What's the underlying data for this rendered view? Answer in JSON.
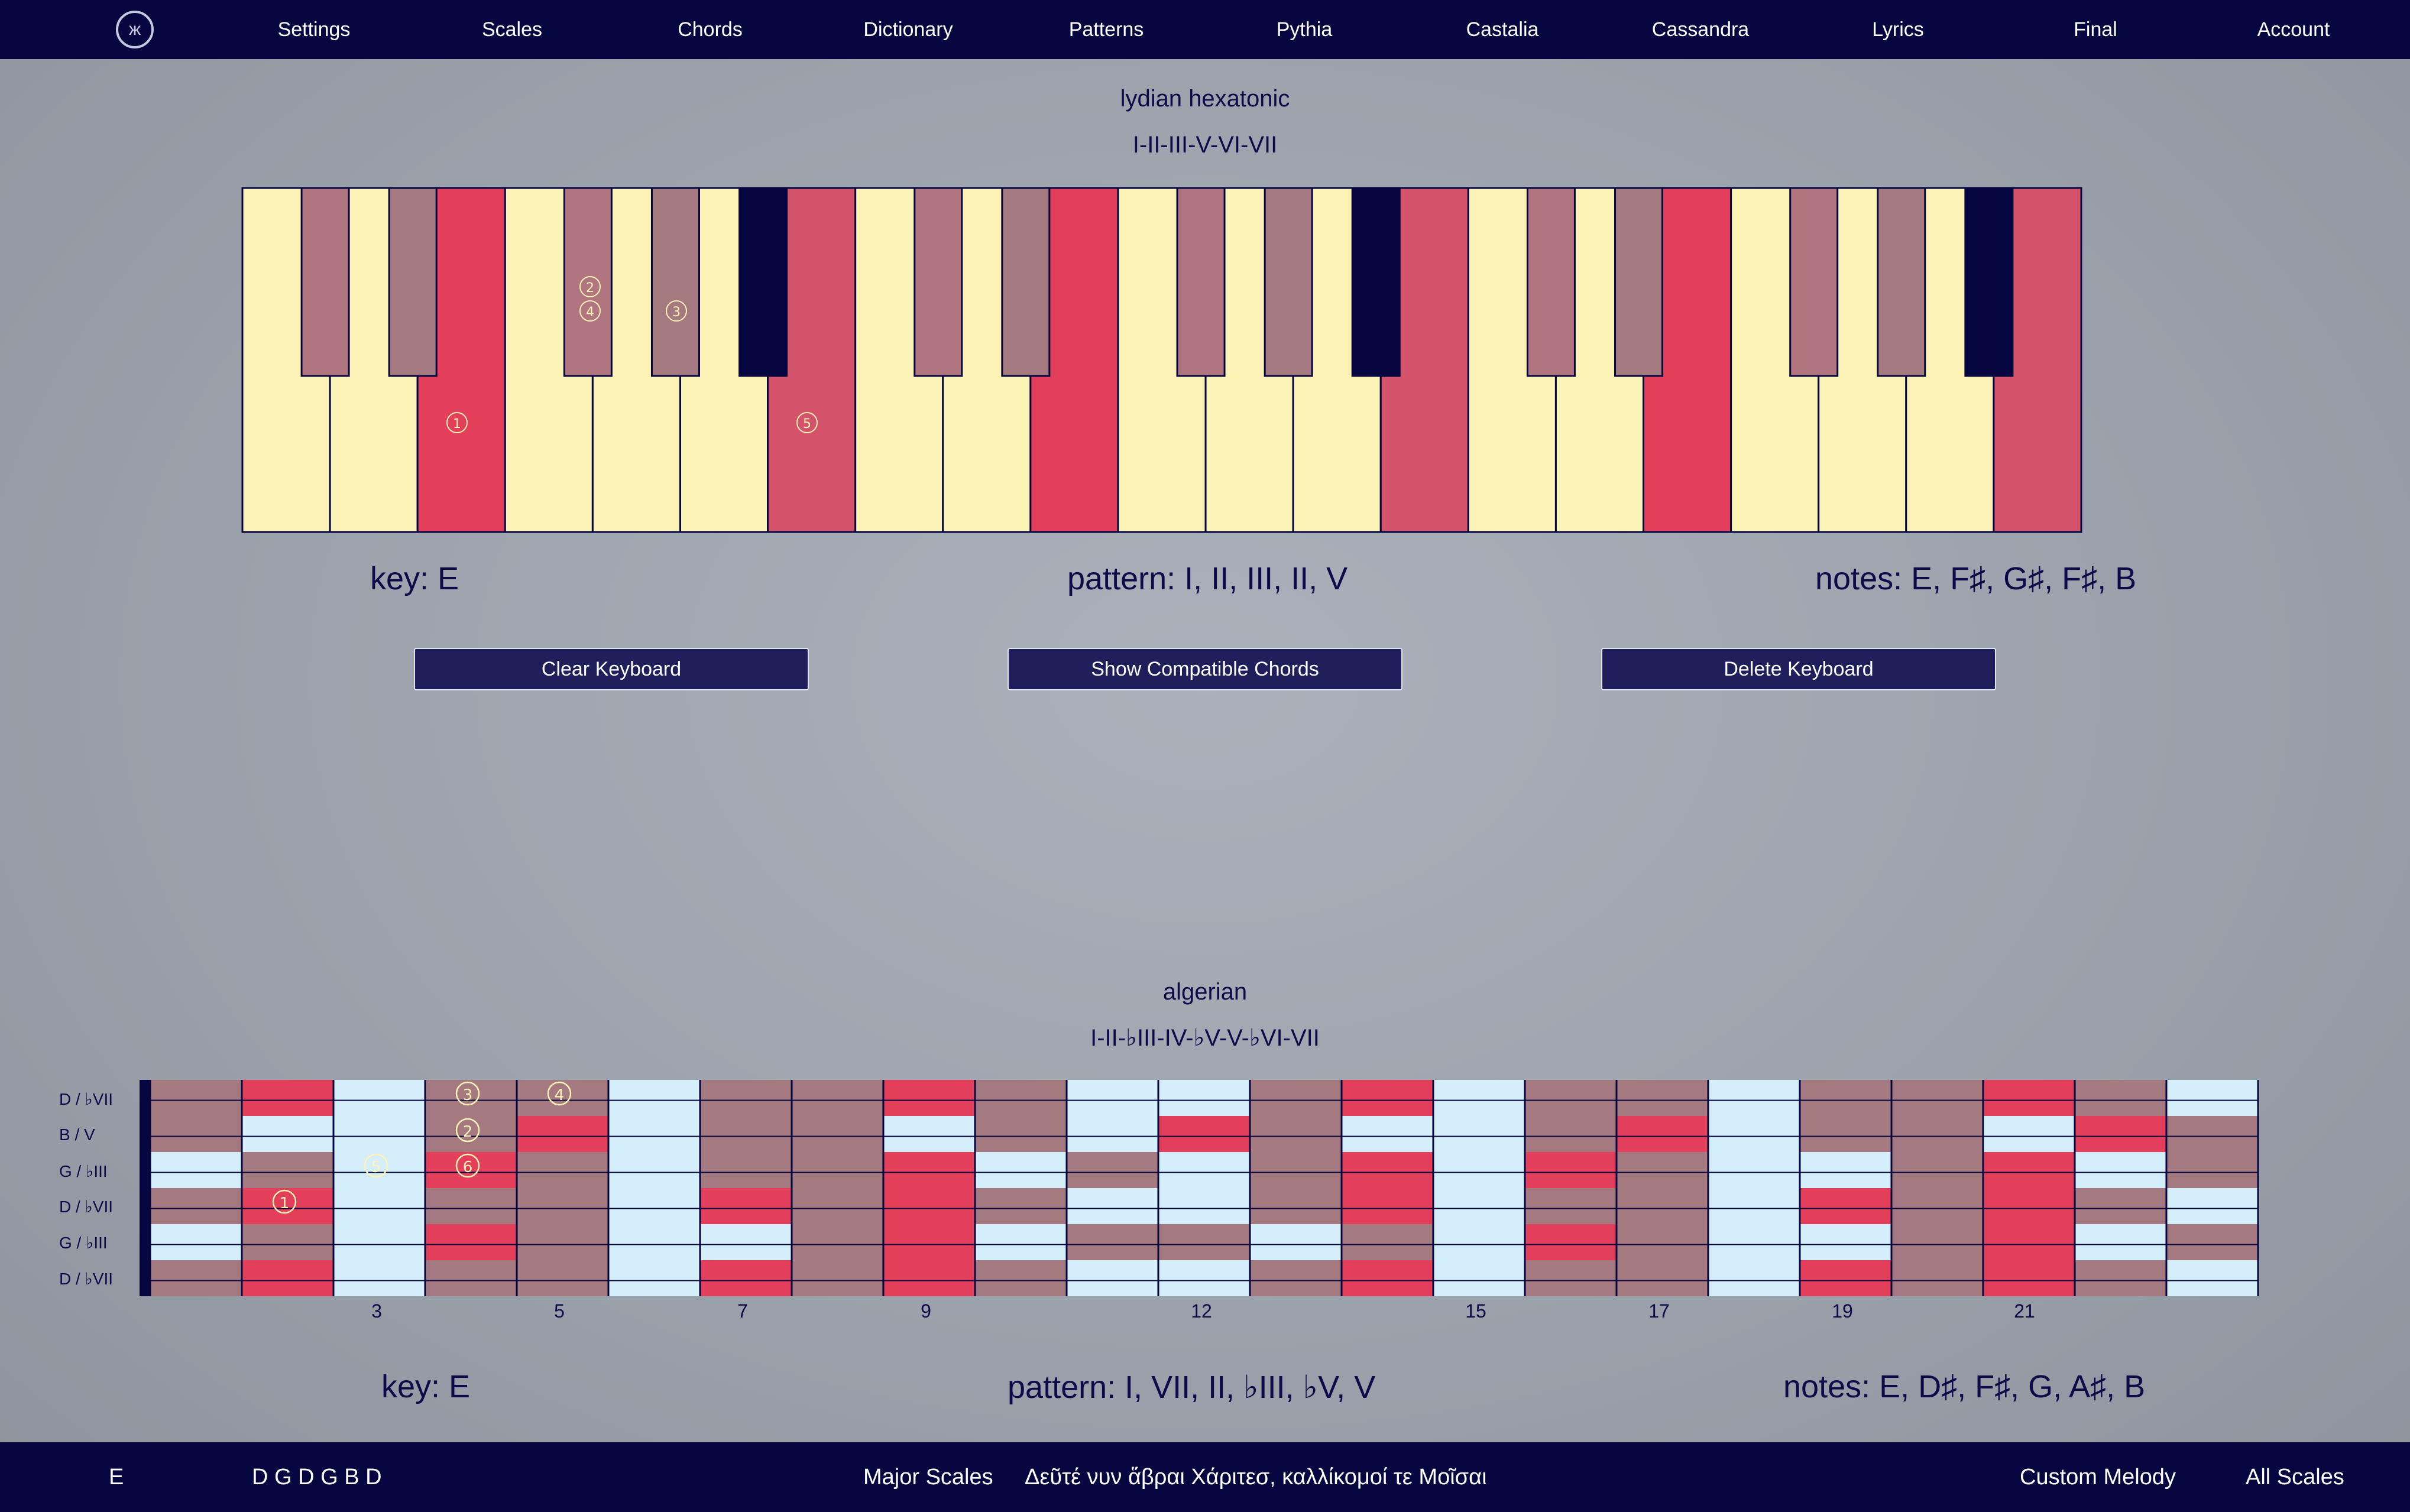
{
  "nav": {
    "items": [
      "Settings",
      "Scales",
      "Chords",
      "Dictionary",
      "Patterns",
      "Pythia",
      "Castalia",
      "Cassandra",
      "Lyrics",
      "Final",
      "Account"
    ],
    "logo_icon": "scale-logo-icon"
  },
  "keyboard_section": {
    "scale_name": "lydian hexatonic",
    "degrees": "I-II-III-V-VI-VII",
    "key": "key: E",
    "pattern": "pattern: I, II, III, II, V",
    "notes": "notes: E, F♯, G♯, F♯, B",
    "markers": [
      "①",
      "②",
      "④",
      "③",
      "⑤"
    ]
  },
  "buttons": {
    "clear": "Clear Keyboard",
    "show": "Show Compatible Chords",
    "delete": "Delete Keyboard"
  },
  "fretboard_section": {
    "scale_name": "algerian",
    "degrees": "I-II-♭III-IV-♭V-V-♭VI-VII",
    "strings": [
      "D / ♭VII",
      "B / V",
      "G / ♭III",
      "D / ♭VII",
      "G / ♭III",
      "D / ♭VII"
    ],
    "fret_numbers": [
      "3",
      "5",
      "7",
      "9",
      "12",
      "15",
      "17",
      "19",
      "21"
    ],
    "markers": [
      "③",
      "④",
      "②",
      "⑤",
      "⑥",
      "①"
    ],
    "key": "key: E",
    "pattern": "pattern: I, VII, II,  ♭III,  ♭V, V",
    "notes": "notes: E, D♯, F♯, G, A♯, B"
  },
  "bottom": {
    "key": "E",
    "tuning": "D G D G B D",
    "scale_set": "Major Scales",
    "quote": "Δεῦτέ νυν ἅβραι Χάριτεσ, καλλίκομοί τε Μοῖσαι",
    "custom": "Custom Melody",
    "all": "All Scales"
  },
  "colors": {
    "nav_bg": "#05053f",
    "white_key": "#fdf3b6",
    "red": "#e33f5b",
    "dark_red": "#d4536a",
    "mauve": "#b0757f",
    "dusty": "#a4797f",
    "black_key": "#05053f",
    "ice": "#d4eefc"
  }
}
